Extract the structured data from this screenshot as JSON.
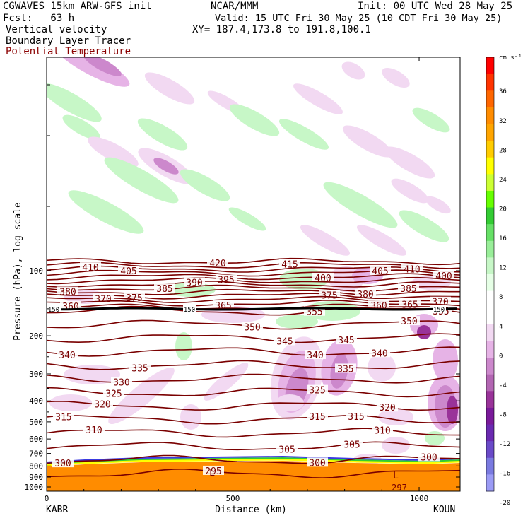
{
  "header": {
    "title_left": "CGWAVES 15km ARW-GFS init",
    "title_center": "NCAR/MMM",
    "init": "Init: 00 UTC Wed 28 May 25",
    "fcst": "Fcst:   63 h",
    "valid": "Valid: 15 UTC Fri 30 May 25 (10 CDT Fri 30 May 25)",
    "field1": "Vertical velocity",
    "xy": "XY= 187.4,173.8 to 191.8,100.1",
    "field2": "Boundary Layer Tracer",
    "field3": "Potential Temperature"
  },
  "chart_data": {
    "type": "cross-section",
    "ylabel": "Pressure (hPa), log scale",
    "xlabel": "Distance (km)",
    "x_ticks": [
      "0",
      "500",
      "1000"
    ],
    "x_tick_values": [
      0,
      500,
      1000
    ],
    "xlim": [
      0,
      1110
    ],
    "y_ticks": [
      "100",
      "200",
      "300",
      "400",
      "500",
      "600",
      "700",
      "800",
      "900",
      "1000"
    ],
    "y_tick_values": [
      100,
      200,
      300,
      400,
      500,
      600,
      700,
      800,
      900,
      1000
    ],
    "yscale": "log",
    "left_endpoint": "KABR",
    "right_endpoint": "KOUN",
    "colorbar": {
      "unit": "cm s⁻¹",
      "labels": [
        "36",
        "32",
        "28",
        "24",
        "20",
        "16",
        "12",
        "8",
        "4",
        "0",
        "-4",
        "-8",
        "-12",
        "-16",
        "-20"
      ],
      "colors": [
        "#ff0000",
        "#ff3300",
        "#ff6600",
        "#ff8c00",
        "#ffa500",
        "#ffcc00",
        "#ffff00",
        "#ccff33",
        "#66ff00",
        "#33cc33",
        "#66e066",
        "#99ee99",
        "#c7f7c7",
        "#e6ffe6",
        "#ffffff",
        "#ffffff",
        "#f2d9f2",
        "#e6b3e6",
        "#cc88cc",
        "#b366b3",
        "#993399",
        "#7a1a9a",
        "#6a2ab0",
        "#6a4ac8",
        "#7a7ae0",
        "#9b9bf5"
      ]
    },
    "theta_contours": [
      {
        "value": 420,
        "y": 420,
        "labels": [
          "420"
        ],
        "label_x": [
          308
        ]
      },
      {
        "value": 415,
        "y": 415,
        "labels": [
          "415"
        ],
        "label_x": [
          410
        ]
      },
      {
        "value": 410,
        "y": 410,
        "labels": [
          "410",
          "410"
        ],
        "label_x": [
          128,
          583
        ]
      },
      {
        "value": 405,
        "y": 405,
        "labels": [
          "405",
          "405"
        ],
        "label_x": [
          182,
          538
        ]
      },
      {
        "value": 400,
        "y": 400,
        "labels": [
          "400",
          "400"
        ],
        "label_x": [
          457,
          628
        ]
      },
      {
        "value": 395,
        "y": 395,
        "labels": [
          "395"
        ],
        "label_x": [
          320
        ]
      },
      {
        "value": 390,
        "y": 390,
        "labels": [
          "390"
        ],
        "label_x": [
          275
        ]
      },
      {
        "value": 385,
        "y": 385,
        "labels": [
          "385",
          "385"
        ],
        "label_x": [
          233,
          578
        ]
      },
      {
        "value": 380,
        "y": 380,
        "labels": [
          "380",
          "380"
        ],
        "label_x": [
          96,
          517
        ]
      },
      {
        "value": 375,
        "y": 375,
        "labels": [
          "375",
          "375"
        ],
        "label_x": [
          190,
          466
        ]
      },
      {
        "value": 370,
        "y": 370,
        "labels": [
          "370",
          "370"
        ],
        "label_x": [
          146,
          623
        ]
      },
      {
        "value": 365,
        "y": 365,
        "labels": [
          "365",
          "365"
        ],
        "label_x": [
          316,
          580
        ]
      },
      {
        "value": 360,
        "y": 360,
        "labels": [
          "360",
          "360"
        ],
        "label_x": [
          100,
          536
        ]
      },
      {
        "value": 355,
        "y": 355,
        "labels": [
          "355",
          "355"
        ],
        "label_x": [
          445,
          624
        ]
      },
      {
        "value": 350,
        "y": 350,
        "labels": [
          "350",
          "350"
        ],
        "label_x": [
          357,
          579
        ]
      },
      {
        "value": 345,
        "y": 345,
        "labels": [
          "345",
          "345"
        ],
        "label_x": [
          403,
          490
        ]
      },
      {
        "value": 340,
        "y": 340,
        "labels": [
          "340",
          "340",
          "340"
        ],
        "label_x": [
          95,
          446,
          537
        ]
      },
      {
        "value": 335,
        "y": 335,
        "labels": [
          "335",
          "335"
        ],
        "label_x": [
          198,
          489
        ]
      },
      {
        "value": 330,
        "y": 330,
        "labels": [
          "330"
        ],
        "label_x": [
          172,
          446
        ]
      },
      {
        "value": 325,
        "y": 325,
        "labels": [
          "325",
          "325"
        ],
        "label_x": [
          161,
          449
        ]
      },
      {
        "value": 320,
        "y": 320,
        "labels": [
          "320",
          "320"
        ],
        "label_x": [
          145,
          548
        ]
      },
      {
        "value": 315,
        "y": 315,
        "labels": [
          "315",
          "315",
          "315"
        ],
        "label_x": [
          90,
          449,
          504
        ]
      },
      {
        "value": 310,
        "y": 310,
        "labels": [
          "310",
          "310"
        ],
        "label_x": [
          133,
          541
        ]
      },
      {
        "value": 305,
        "y": 305,
        "labels": [
          "305",
          "305"
        ],
        "label_x": [
          406,
          498
        ]
      },
      {
        "value": 300,
        "y": 300,
        "labels": [
          "300",
          "300",
          "300"
        ],
        "label_x": [
          89,
          449,
          607
        ]
      },
      {
        "value": 295,
        "y": 295,
        "labels": [
          "295"
        ],
        "label_x": [
          302
        ]
      },
      {
        "value": 297,
        "y": 297,
        "labels": [
          "297"
        ],
        "label_x": [
          565
        ]
      }
    ],
    "annotations": [
      "150",
      "150",
      "150",
      "L",
      "L"
    ]
  }
}
